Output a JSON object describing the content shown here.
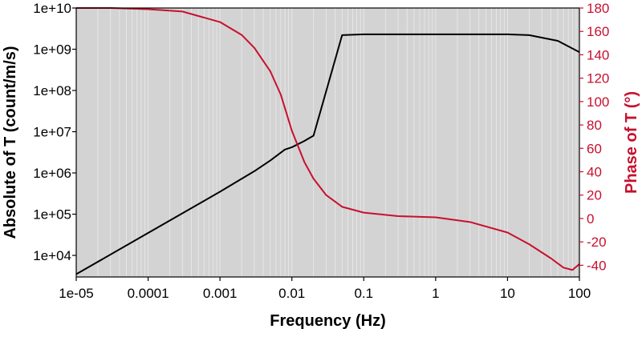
{
  "chart_data": {
    "type": "line",
    "xlabel": "Frequency (Hz)",
    "ylabel_left": "Absolute of T (count/m/s)",
    "ylabel_right": "Phase of T (°)",
    "x_scale": "log",
    "y_left_scale": "log",
    "y_right_scale": "linear",
    "xlim": [
      1e-05,
      100
    ],
    "ylim_left": [
      3000,
      10000000000.0
    ],
    "ylim_right": [
      -50,
      180
    ],
    "x_tick_labels": [
      "1e-05",
      "0.0001",
      "0.001",
      "0.01",
      "0.1",
      "1",
      "10",
      "100"
    ],
    "x_tick_values": [
      1e-05,
      0.0001,
      0.001,
      0.01,
      0.1,
      1,
      10,
      100
    ],
    "y_left_tick_labels": [
      "1e+04",
      "1e+05",
      "1e+06",
      "1e+07",
      "1e+08",
      "1e+09",
      "1e+10"
    ],
    "y_left_tick_values": [
      10000.0,
      100000.0,
      1000000.0,
      10000000.0,
      100000000.0,
      1000000000.0,
      10000000000.0
    ],
    "y_right_tick_labels": [
      "-40",
      "-20",
      "0",
      "20",
      "40",
      "60",
      "80",
      "100",
      "120",
      "140",
      "160",
      "180"
    ],
    "y_right_tick_values": [
      -40,
      -20,
      0,
      20,
      40,
      60,
      80,
      100,
      120,
      140,
      160,
      180
    ],
    "grid": "vertical log minor lines",
    "series": [
      {
        "axis": "left",
        "color": "#000000",
        "x": [
          1e-05,
          0.0001,
          0.001,
          0.003,
          0.005,
          0.008,
          0.01,
          0.015,
          0.02,
          0.05,
          0.1,
          1,
          10,
          20,
          50,
          100
        ],
        "y": [
          3500,
          35000,
          350000,
          1100000,
          2000000,
          3700000,
          4200000,
          6000000,
          8000000,
          2200000000.0,
          2300000000.0,
          2300000000.0,
          2300000000.0,
          2200000000.0,
          1600000000.0,
          850000000.0
        ]
      },
      {
        "axis": "right",
        "color": "#c8102e",
        "x": [
          1e-05,
          3e-05,
          0.0001,
          0.0003,
          0.001,
          0.002,
          0.003,
          0.005,
          0.007,
          0.01,
          0.015,
          0.02,
          0.03,
          0.05,
          0.1,
          0.3,
          1,
          3,
          10,
          20,
          40,
          60,
          80,
          100
        ],
        "y": [
          180,
          180,
          179,
          177,
          168,
          157,
          146,
          126,
          106,
          75,
          48,
          34,
          20,
          10,
          5,
          2,
          1,
          -3,
          -12,
          -22,
          -34,
          -42,
          -44,
          -39
        ]
      }
    ]
  }
}
